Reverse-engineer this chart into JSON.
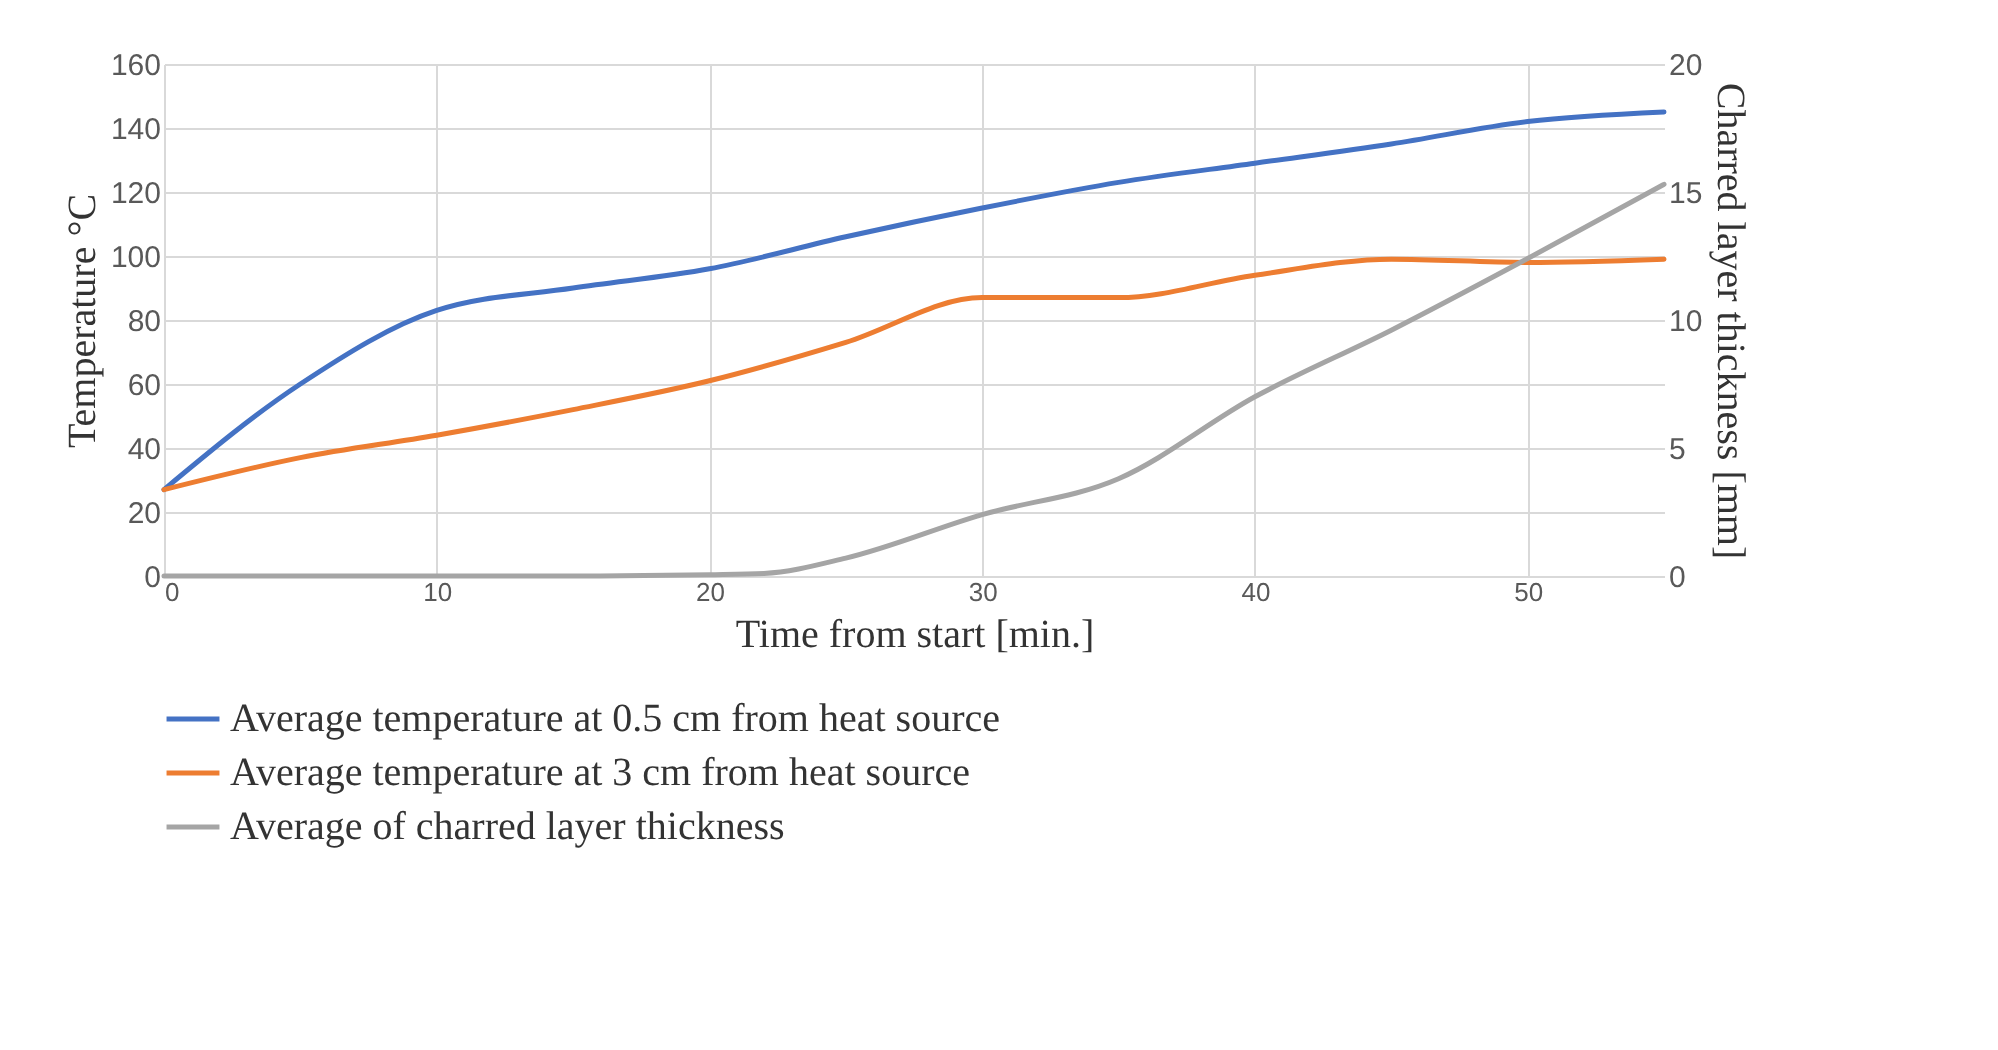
{
  "chart_data": {
    "type": "line",
    "xlabel": "Time from start [min.]",
    "ylabel": "Temperature °C",
    "y2label": "Charred layer thickness [mm]",
    "xlim": [
      0,
      55
    ],
    "xticks": [
      0,
      10,
      20,
      30,
      40,
      50
    ],
    "ylim": [
      0,
      160
    ],
    "yticks": [
      0,
      20,
      40,
      60,
      80,
      100,
      120,
      140,
      160
    ],
    "y2lim": [
      0,
      20
    ],
    "y2ticks": [
      0,
      5,
      10,
      15,
      20
    ],
    "grid": true,
    "legend": "bottom",
    "marker": "none",
    "line_style": "solid",
    "series": [
      {
        "name": "Average temperature at 0.5 cm from heat source",
        "color": "#4472c4",
        "x": [
          0,
          5,
          10,
          15,
          20,
          25,
          30,
          35,
          40,
          45,
          50,
          55
        ],
        "values": [
          27,
          60,
          83,
          90,
          96,
          106,
          115,
          123,
          129,
          135,
          142,
          145
        ]
      },
      {
        "name": "Average temperature at 3 cm from heat source",
        "color": "#ed7d31",
        "x": [
          0,
          5,
          10,
          15,
          20,
          25,
          30,
          35,
          40,
          45,
          50,
          55
        ],
        "values": [
          27,
          37,
          44,
          52,
          61,
          73,
          87,
          87,
          94,
          99,
          98,
          99
        ]
      },
      {
        "name": "Average of charred layer thickness",
        "color": "#a5a5a5",
        "axis": "y2",
        "x": [
          0,
          10,
          15,
          20,
          22,
          25,
          30,
          35,
          40,
          45,
          50,
          55
        ],
        "values": [
          0,
          0,
          0,
          0.05,
          0.1,
          0.7,
          2.4,
          3.8,
          7,
          9.6,
          12.4,
          15.3
        ]
      }
    ]
  }
}
